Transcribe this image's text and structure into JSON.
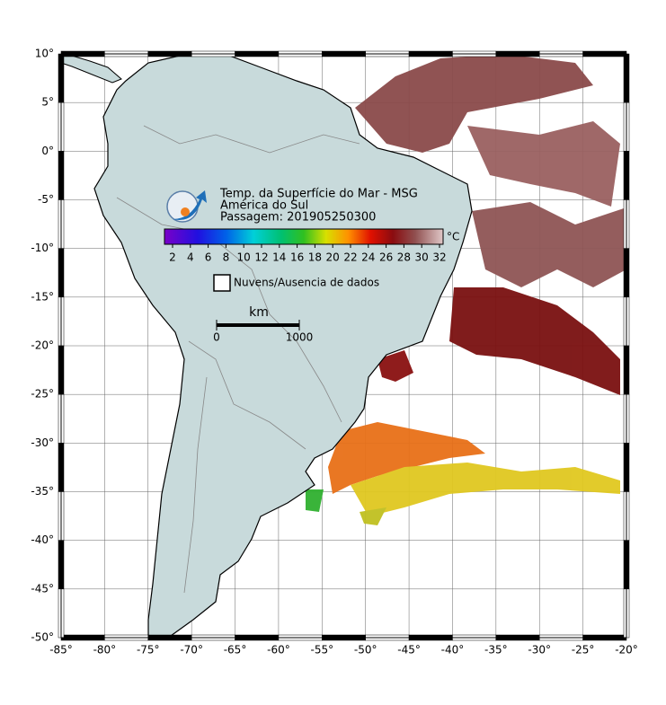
{
  "map": {
    "title_lines": [
      "Temp. da Superfície do Mar - MSG",
      "América do Sul",
      "Passagem: 201905250300"
    ],
    "lon_ticks": [
      {
        "value": -85,
        "label": "-85°"
      },
      {
        "value": -80,
        "label": "-80°"
      },
      {
        "value": -75,
        "label": "-75°"
      },
      {
        "value": -70,
        "label": "-70°"
      },
      {
        "value": -65,
        "label": "-65°"
      },
      {
        "value": -60,
        "label": "-60°"
      },
      {
        "value": -55,
        "label": "-55°"
      },
      {
        "value": -50,
        "label": "-50°"
      },
      {
        "value": -45,
        "label": "-45°"
      },
      {
        "value": -40,
        "label": "-40°"
      },
      {
        "value": -35,
        "label": "-35°"
      },
      {
        "value": -30,
        "label": "-30°"
      },
      {
        "value": -25,
        "label": "-25°"
      },
      {
        "value": -20,
        "label": "-20°"
      }
    ],
    "lat_ticks": [
      {
        "value": 10,
        "label": "10°"
      },
      {
        "value": 5,
        "label": "5°"
      },
      {
        "value": 0,
        "label": "0°"
      },
      {
        "value": -5,
        "label": "-5°"
      },
      {
        "value": -10,
        "label": "-10°"
      },
      {
        "value": -15,
        "label": "-15°"
      },
      {
        "value": -20,
        "label": "-20°"
      },
      {
        "value": -25,
        "label": "-25°"
      },
      {
        "value": -30,
        "label": "-30°"
      },
      {
        "value": -35,
        "label": "-35°"
      },
      {
        "value": -40,
        "label": "-40°"
      },
      {
        "value": -45,
        "label": "-45°"
      },
      {
        "value": -50,
        "label": "-50°"
      }
    ],
    "colorbar": {
      "ticks": [
        2,
        4,
        6,
        8,
        10,
        12,
        14,
        16,
        18,
        20,
        22,
        24,
        26,
        28,
        30,
        32
      ],
      "unit": "°C"
    },
    "legend": "Nuvens/Ausencia de dados",
    "scale_bar": {
      "unit": "km",
      "start": "0",
      "end": "1000"
    }
  }
}
